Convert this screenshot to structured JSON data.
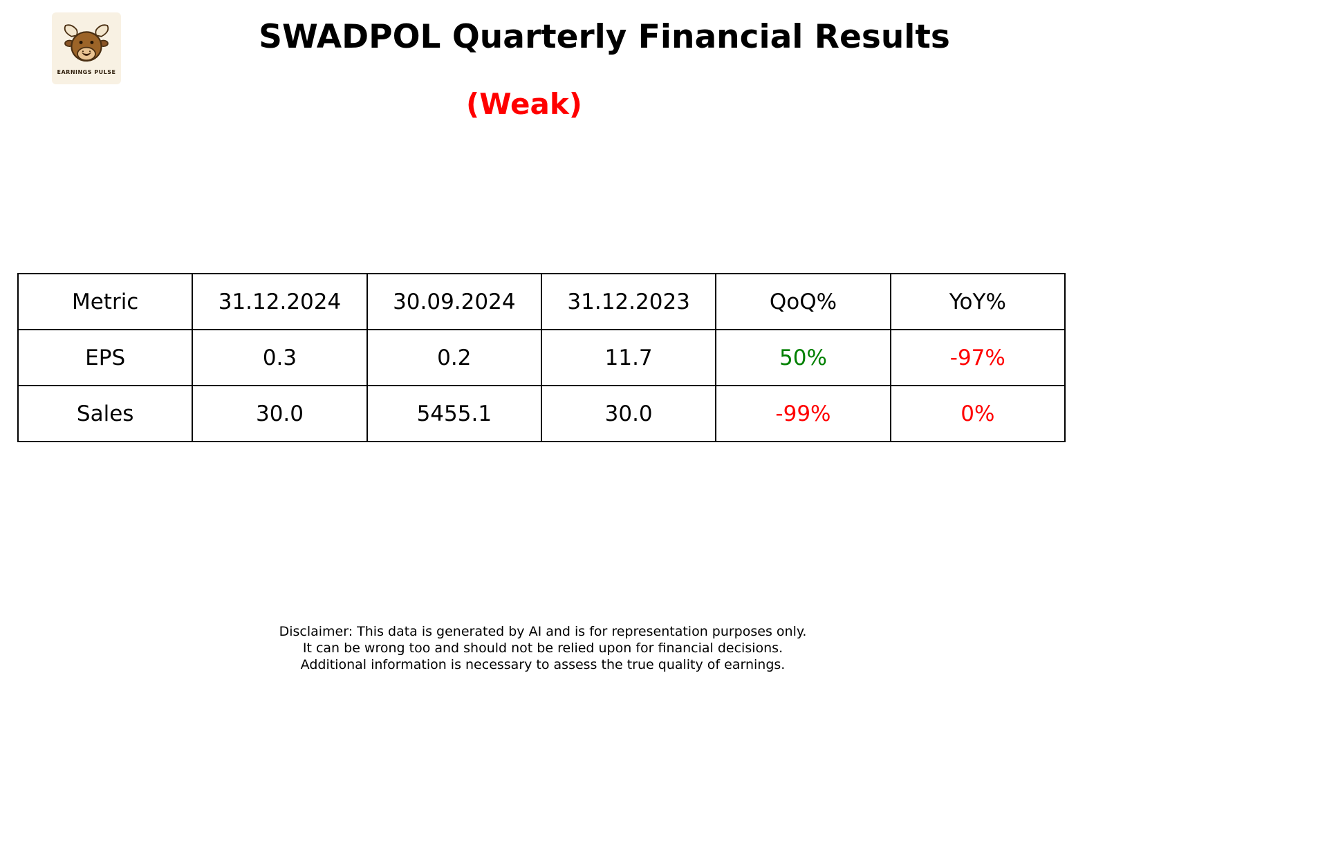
{
  "logo": {
    "caption": "EARNINGS PULSE",
    "icon": "bull-icon"
  },
  "header": {
    "title": "SWADPOL Quarterly Financial Results",
    "verdict": "(Weak)",
    "verdict_color": "#ff0000"
  },
  "colors": {
    "positive": "#008000",
    "negative": "#ff0000",
    "text": "#000000",
    "background": "#ffffff"
  },
  "table": {
    "headers": [
      "Metric",
      "31.12.2024",
      "30.09.2024",
      "31.12.2023",
      "QoQ%",
      "YoY%"
    ],
    "rows": [
      {
        "cells": [
          {
            "text": "EPS"
          },
          {
            "text": "0.3"
          },
          {
            "text": "0.2"
          },
          {
            "text": "11.7"
          },
          {
            "text": "50%",
            "color": "positive"
          },
          {
            "text": "-97%",
            "color": "negative"
          }
        ]
      },
      {
        "cells": [
          {
            "text": "Sales"
          },
          {
            "text": "30.0"
          },
          {
            "text": "5455.1"
          },
          {
            "text": "30.0"
          },
          {
            "text": "-99%",
            "color": "negative"
          },
          {
            "text": "0%",
            "color": "negative"
          }
        ]
      }
    ]
  },
  "disclaimer": {
    "lines": [
      "Disclaimer: This data is generated by AI and is for representation purposes only.",
      "It can be wrong too and should not be relied upon for financial decisions.",
      "Additional information is necessary to assess the true quality of earnings."
    ]
  },
  "chart_data": {
    "type": "table",
    "title": "SWADPOL Quarterly Financial Results",
    "subtitle": "(Weak)",
    "columns": [
      "Metric",
      "31.12.2024",
      "30.09.2024",
      "31.12.2023",
      "QoQ%",
      "YoY%"
    ],
    "rows": [
      [
        "EPS",
        0.3,
        0.2,
        11.7,
        "50%",
        "-97%"
      ],
      [
        "Sales",
        30.0,
        5455.1,
        30.0,
        "-99%",
        "0%"
      ]
    ],
    "cell_colors_note": "QoQ EPS 50% green; YoY EPS -97% red; QoQ Sales -99% red; YoY Sales 0% red"
  }
}
